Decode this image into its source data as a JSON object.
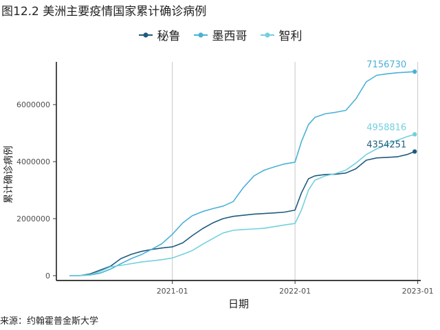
{
  "chart_data": {
    "type": "line",
    "title": "图12.2 美洲主要疫情国家累计确诊病例",
    "xlabel": "日期",
    "ylabel": "累计确诊病例",
    "x_ticks": [
      "2021-01",
      "2022-01",
      "2023-01"
    ],
    "y_ticks": [
      0,
      2000000,
      4000000,
      6000000
    ],
    "y_tick_labels": [
      "0",
      "2000000",
      "4000000",
      "6000000"
    ],
    "xlim": [
      "2020-01-22",
      "2023-01-10"
    ],
    "ylim": [
      -170000,
      7500000
    ],
    "grid": "vertical-major",
    "legend_position": "top",
    "source": "来源：约翰霍普金斯大学",
    "series": [
      {
        "name": "秘鲁",
        "color": "#1f5a7e",
        "end_label": "4354251",
        "points": [
          [
            "2020-03-01",
            0
          ],
          [
            "2020-04-01",
            2000
          ],
          [
            "2020-05-01",
            60000
          ],
          [
            "2020-06-01",
            200000
          ],
          [
            "2020-07-01",
            330000
          ],
          [
            "2020-08-01",
            600000
          ],
          [
            "2020-09-01",
            750000
          ],
          [
            "2020-10-01",
            850000
          ],
          [
            "2020-11-01",
            920000
          ],
          [
            "2020-12-01",
            970000
          ],
          [
            "2021-01-01",
            1010000
          ],
          [
            "2021-02-01",
            1150000
          ],
          [
            "2021-03-01",
            1400000
          ],
          [
            "2021-04-01",
            1650000
          ],
          [
            "2021-05-01",
            1850000
          ],
          [
            "2021-06-01",
            2000000
          ],
          [
            "2021-07-01",
            2080000
          ],
          [
            "2021-08-01",
            2120000
          ],
          [
            "2021-09-01",
            2160000
          ],
          [
            "2021-10-01",
            2180000
          ],
          [
            "2021-11-01",
            2200000
          ],
          [
            "2021-12-01",
            2230000
          ],
          [
            "2022-01-01",
            2300000
          ],
          [
            "2022-01-20",
            2900000
          ],
          [
            "2022-02-10",
            3400000
          ],
          [
            "2022-03-01",
            3500000
          ],
          [
            "2022-04-01",
            3550000
          ],
          [
            "2022-05-01",
            3560000
          ],
          [
            "2022-06-01",
            3600000
          ],
          [
            "2022-07-01",
            3750000
          ],
          [
            "2022-08-01",
            4050000
          ],
          [
            "2022-09-01",
            4130000
          ],
          [
            "2022-10-01",
            4150000
          ],
          [
            "2022-11-01",
            4170000
          ],
          [
            "2022-12-01",
            4250000
          ],
          [
            "2022-12-23",
            4354251
          ]
        ]
      },
      {
        "name": "墨西哥",
        "color": "#4ab0d8",
        "end_label": "7156730",
        "points": [
          [
            "2020-03-01",
            0
          ],
          [
            "2020-04-01",
            2000
          ],
          [
            "2020-05-01",
            20000
          ],
          [
            "2020-06-01",
            90000
          ],
          [
            "2020-07-01",
            230000
          ],
          [
            "2020-08-01",
            420000
          ],
          [
            "2020-09-01",
            600000
          ],
          [
            "2020-10-01",
            740000
          ],
          [
            "2020-11-01",
            930000
          ],
          [
            "2020-12-01",
            1120000
          ],
          [
            "2021-01-01",
            1450000
          ],
          [
            "2021-02-01",
            1850000
          ],
          [
            "2021-03-01",
            2100000
          ],
          [
            "2021-04-01",
            2250000
          ],
          [
            "2021-05-01",
            2350000
          ],
          [
            "2021-06-01",
            2440000
          ],
          [
            "2021-07-01",
            2600000
          ],
          [
            "2021-08-01",
            3100000
          ],
          [
            "2021-09-01",
            3500000
          ],
          [
            "2021-10-01",
            3700000
          ],
          [
            "2021-11-01",
            3820000
          ],
          [
            "2021-12-01",
            3920000
          ],
          [
            "2022-01-01",
            3980000
          ],
          [
            "2022-01-20",
            4700000
          ],
          [
            "2022-02-10",
            5300000
          ],
          [
            "2022-03-01",
            5550000
          ],
          [
            "2022-04-01",
            5680000
          ],
          [
            "2022-05-01",
            5730000
          ],
          [
            "2022-06-01",
            5800000
          ],
          [
            "2022-07-01",
            6200000
          ],
          [
            "2022-08-01",
            6800000
          ],
          [
            "2022-09-01",
            7030000
          ],
          [
            "2022-10-01",
            7080000
          ],
          [
            "2022-11-01",
            7120000
          ],
          [
            "2022-12-01",
            7140000
          ],
          [
            "2022-12-23",
            7156730
          ]
        ]
      },
      {
        "name": "智利",
        "color": "#73d0de",
        "end_label": "4958816",
        "points": [
          [
            "2020-03-01",
            0
          ],
          [
            "2020-04-01",
            4000
          ],
          [
            "2020-05-01",
            30000
          ],
          [
            "2020-06-01",
            150000
          ],
          [
            "2020-07-01",
            310000
          ],
          [
            "2020-08-01",
            360000
          ],
          [
            "2020-09-01",
            420000
          ],
          [
            "2020-10-01",
            480000
          ],
          [
            "2020-11-01",
            520000
          ],
          [
            "2020-12-01",
            560000
          ],
          [
            "2021-01-01",
            620000
          ],
          [
            "2021-02-01",
            750000
          ],
          [
            "2021-03-01",
            880000
          ],
          [
            "2021-04-01",
            1100000
          ],
          [
            "2021-05-01",
            1300000
          ],
          [
            "2021-06-01",
            1500000
          ],
          [
            "2021-07-01",
            1590000
          ],
          [
            "2021-08-01",
            1620000
          ],
          [
            "2021-09-01",
            1640000
          ],
          [
            "2021-10-01",
            1660000
          ],
          [
            "2021-11-01",
            1720000
          ],
          [
            "2021-12-01",
            1780000
          ],
          [
            "2022-01-01",
            1830000
          ],
          [
            "2022-01-20",
            2300000
          ],
          [
            "2022-02-10",
            3000000
          ],
          [
            "2022-03-01",
            3350000
          ],
          [
            "2022-04-01",
            3500000
          ],
          [
            "2022-05-01",
            3580000
          ],
          [
            "2022-06-01",
            3700000
          ],
          [
            "2022-07-01",
            3950000
          ],
          [
            "2022-08-01",
            4250000
          ],
          [
            "2022-09-01",
            4450000
          ],
          [
            "2022-10-01",
            4600000
          ],
          [
            "2022-11-01",
            4750000
          ],
          [
            "2022-12-01",
            4880000
          ],
          [
            "2022-12-23",
            4958816
          ]
        ]
      }
    ]
  }
}
